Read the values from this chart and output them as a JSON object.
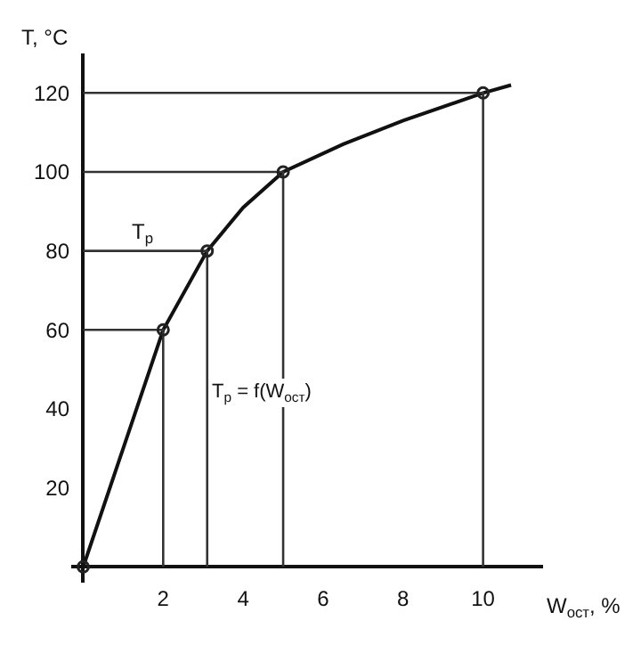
{
  "chart_data": {
    "type": "line",
    "xlabel": "W$_{ост}$, %",
    "ylabel": "T, °C",
    "xlim": [
      -0.3,
      11.5
    ],
    "ylim": [
      -4,
      130
    ],
    "xticks": [
      2,
      4,
      6,
      8,
      10
    ],
    "yticks": [
      20,
      40,
      60,
      80,
      100,
      120
    ],
    "annotations": [
      {
        "text": "T$_{р}$",
        "x": 1.5,
        "y": 80
      },
      "T$_{р}$ = f(W$_{ост}$)"
    ],
    "series": [
      {
        "color": "#111111",
        "x": [
          0,
          1,
          2,
          3.1,
          4,
          5,
          6.5,
          8,
          10,
          10.7
        ],
        "values": [
          0,
          30,
          60,
          80,
          91,
          100,
          107,
          113,
          120,
          122
        ]
      },
      {
        "color": "#333333",
        "x": [
          0,
          2,
          2
        ],
        "values": [
          60,
          60,
          0
        ]
      },
      {
        "color": "#333333",
        "x": [
          0,
          3.1,
          3.1
        ],
        "values": [
          80,
          80,
          0
        ]
      },
      {
        "color": "#333333",
        "x": [
          0,
          5,
          5
        ],
        "values": [
          100,
          100,
          0
        ]
      },
      {
        "color": "#333333",
        "x": [
          0,
          10,
          10
        ],
        "values": [
          120,
          120,
          0
        ]
      },
      {
        "type": "scatter",
        "marker": "circle",
        "color": "#222222",
        "x": [
          0,
          2,
          3.1,
          5,
          10
        ],
        "values": [
          0,
          60,
          80,
          100,
          120
        ]
      }
    ]
  }
}
